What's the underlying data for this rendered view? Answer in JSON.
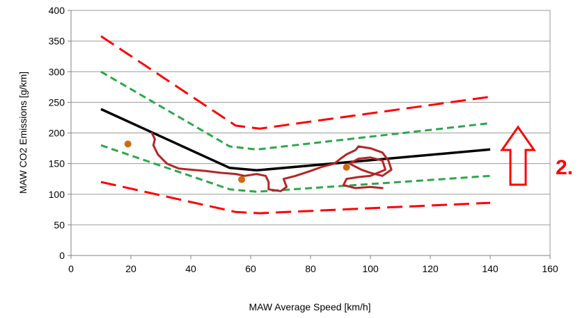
{
  "chart_data": {
    "type": "line",
    "title": "",
    "xlabel": "MAW Average Speed [km/h]",
    "ylabel": "MAW CO2 Emissions [g/km]",
    "xlim": [
      0,
      160
    ],
    "ylim": [
      0,
      400
    ],
    "xticks": [
      0,
      20,
      40,
      60,
      80,
      100,
      120,
      140,
      160
    ],
    "yticks": [
      0,
      50,
      100,
      150,
      200,
      250,
      300,
      350,
      400
    ],
    "grid": "horizontal",
    "legend": "none",
    "colors": {
      "reference": "#000000",
      "green_band": "#2aa84a",
      "red_band": "#ff0000",
      "trace": "#b52525",
      "points": "#cc6b14",
      "annotation": "#ff0000"
    },
    "series": [
      {
        "style": "solid-black",
        "x": [
          10,
          53,
          62,
          140
        ],
        "y": [
          239,
          143,
          139,
          173
        ]
      },
      {
        "style": "dashed-green",
        "x": [
          10,
          53,
          62,
          140
        ],
        "y": [
          300,
          178,
          173,
          216
        ]
      },
      {
        "style": "dashed-green",
        "x": [
          10,
          53,
          62,
          140
        ],
        "y": [
          180,
          108,
          104,
          130
        ]
      },
      {
        "style": "dashed-red",
        "x": [
          10,
          55,
          63,
          140
        ],
        "y": [
          358,
          212,
          207,
          259
        ]
      },
      {
        "style": "dashed-red",
        "x": [
          10,
          55,
          63,
          140
        ],
        "y": [
          120,
          71,
          69,
          86
        ]
      }
    ],
    "trace": {
      "x": [
        27,
        28,
        27.5,
        29,
        32,
        36,
        40,
        45,
        50,
        55,
        58,
        62,
        65,
        66,
        66,
        70,
        72,
        71,
        75,
        80,
        84,
        88,
        90,
        92,
        95,
        96,
        100,
        104,
        106,
        107,
        104,
        100,
        97,
        95,
        93,
        96,
        100,
        104,
        105,
        100,
        96,
        92,
        91,
        95,
        100,
        104
      ],
      "y": [
        200,
        190,
        180,
        165,
        150,
        142,
        140,
        138,
        135,
        133,
        130,
        133,
        130,
        120,
        108,
        105,
        112,
        125,
        130,
        138,
        145,
        150,
        158,
        165,
        172,
        178,
        175,
        168,
        155,
        140,
        130,
        135,
        140,
        145,
        150,
        158,
        160,
        155,
        140,
        130,
        128,
        125,
        115,
        110,
        112,
        110
      ]
    },
    "points": {
      "x": [
        19,
        57,
        92
      ],
      "y": [
        182,
        124,
        144
      ]
    },
    "annotation": {
      "text": "2.",
      "arrow": "up"
    }
  }
}
